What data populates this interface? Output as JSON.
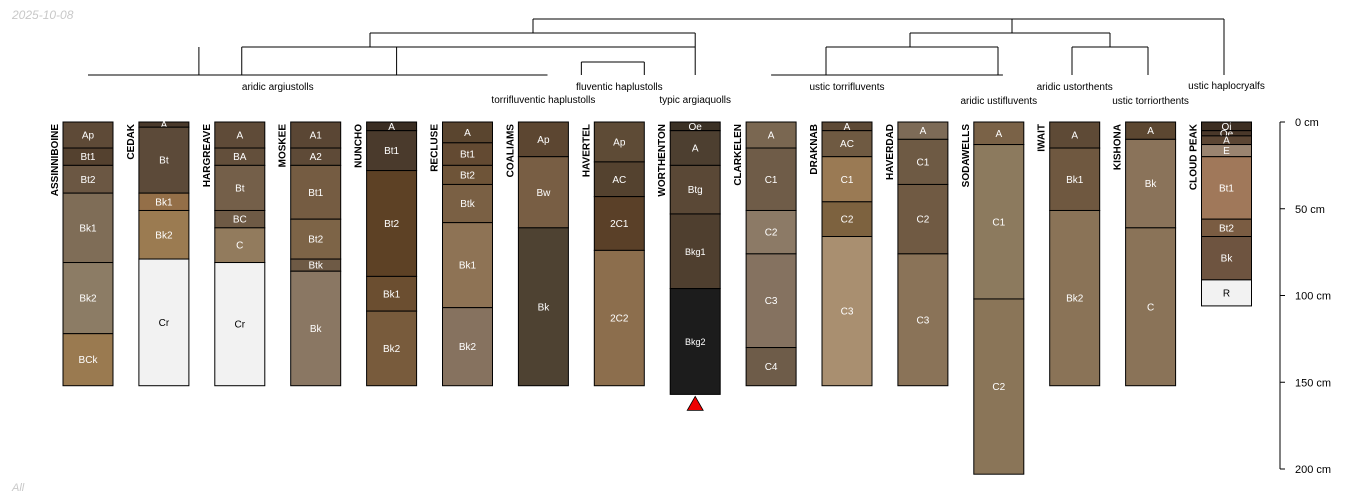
{
  "stamp": {
    "date": "2025-10-08",
    "group": "All"
  },
  "colors": {
    "stroke": "#000000",
    "missing_marker": "#ee0000"
  },
  "chart_data": {
    "type": "soil-profile-sketch",
    "depth_unit": "cm",
    "depth_range": [
      0,
      200
    ],
    "depth_ticks": [
      0,
      50,
      100,
      150,
      200
    ],
    "depth_tick_labels": [
      "0 cm",
      "50 cm",
      "100 cm",
      "150 cm",
      "200 cm"
    ],
    "profiles": [
      {
        "id": "ASSINNIBOINE",
        "horizons": [
          {
            "name": "Ap",
            "top": 0,
            "bottom": 15,
            "color": "#5e4a37"
          },
          {
            "name": "Bt1",
            "top": 15,
            "bottom": 25,
            "color": "#54412f"
          },
          {
            "name": "Bt2",
            "top": 25,
            "bottom": 41,
            "color": "#6b5743"
          },
          {
            "name": "Bk1",
            "top": 41,
            "bottom": 81,
            "color": "#7f6d57"
          },
          {
            "name": "Bk2",
            "top": 81,
            "bottom": 122,
            "color": "#8c7c65"
          },
          {
            "name": "BCk",
            "top": 122,
            "bottom": 152,
            "color": "#9a7a50"
          }
        ]
      },
      {
        "id": "CEDAK",
        "horizons": [
          {
            "name": "A",
            "top": 0,
            "bottom": 3,
            "color": "#4a3a2c"
          },
          {
            "name": "Bt",
            "top": 3,
            "bottom": 41,
            "color": "#5c4a39"
          },
          {
            "name": "Bk1",
            "top": 41,
            "bottom": 51,
            "color": "#946f48"
          },
          {
            "name": "Bk2",
            "top": 51,
            "bottom": 79,
            "color": "#9b7b51"
          },
          {
            "name": "Cr",
            "top": 79,
            "bottom": 152,
            "color": "#f2f2f2"
          }
        ]
      },
      {
        "id": "HARGREAVE",
        "horizons": [
          {
            "name": "A",
            "top": 0,
            "bottom": 15,
            "color": "#5f4b38"
          },
          {
            "name": "BA",
            "top": 15,
            "bottom": 25,
            "color": "#634f3b"
          },
          {
            "name": "Bt",
            "top": 25,
            "bottom": 51,
            "color": "#745f49"
          },
          {
            "name": "BC",
            "top": 51,
            "bottom": 61,
            "color": "#6e5a45"
          },
          {
            "name": "C",
            "top": 61,
            "bottom": 81,
            "color": "#927b5d"
          },
          {
            "name": "Cr",
            "top": 81,
            "bottom": 152,
            "color": "#f2f2f2"
          }
        ]
      },
      {
        "id": "MOSKEE",
        "horizons": [
          {
            "name": "A1",
            "top": 0,
            "bottom": 15,
            "color": "#5a4634"
          },
          {
            "name": "A2",
            "top": 15,
            "bottom": 25,
            "color": "#5e4a37"
          },
          {
            "name": "Bt1",
            "top": 25,
            "bottom": 56,
            "color": "#755c42"
          },
          {
            "name": "Bt2",
            "top": 56,
            "bottom": 79,
            "color": "#7d6447"
          },
          {
            "name": "Btk",
            "top": 79,
            "bottom": 86,
            "color": "#6e5a45"
          },
          {
            "name": "Bk",
            "top": 86,
            "bottom": 152,
            "color": "#8a7763"
          }
        ]
      },
      {
        "id": "NUNCHO",
        "horizons": [
          {
            "name": "A",
            "top": 0,
            "bottom": 5,
            "color": "#3a2d22"
          },
          {
            "name": "Bt1",
            "top": 5,
            "bottom": 28,
            "color": "#4a3a2c"
          },
          {
            "name": "Bt2",
            "top": 28,
            "bottom": 89,
            "color": "#5d4125"
          },
          {
            "name": "Bk1",
            "top": 89,
            "bottom": 109,
            "color": "#6b4e30"
          },
          {
            "name": "Bk2",
            "top": 109,
            "bottom": 152,
            "color": "#785b3c"
          }
        ]
      },
      {
        "id": "RECLUSE",
        "horizons": [
          {
            "name": "A",
            "top": 0,
            "bottom": 12,
            "color": "#5a452f"
          },
          {
            "name": "Bt1",
            "top": 12,
            "bottom": 25,
            "color": "#634a32"
          },
          {
            "name": "Bt2",
            "top": 25,
            "bottom": 36,
            "color": "#6e5438"
          },
          {
            "name": "Btk",
            "top": 36,
            "bottom": 58,
            "color": "#7a6044"
          },
          {
            "name": "Bk1",
            "top": 58,
            "bottom": 107,
            "color": "#8e7355"
          },
          {
            "name": "Bk2",
            "top": 107,
            "bottom": 152,
            "color": "#86725f"
          }
        ]
      },
      {
        "id": "COALIAMS",
        "horizons": [
          {
            "name": "Ap",
            "top": 0,
            "bottom": 20,
            "color": "#5c4631"
          },
          {
            "name": "Bw",
            "top": 20,
            "bottom": 61,
            "color": "#785e44"
          },
          {
            "name": "Bk",
            "top": 61,
            "bottom": 152,
            "color": "#4e4232"
          }
        ]
      },
      {
        "id": "HAVERTEL",
        "horizons": [
          {
            "name": "Ap",
            "top": 0,
            "bottom": 23,
            "color": "#5e4b36"
          },
          {
            "name": "AC",
            "top": 23,
            "bottom": 43,
            "color": "#54422f"
          },
          {
            "name": "2C1",
            "top": 43,
            "bottom": 74,
            "color": "#5a4028"
          },
          {
            "name": "2C2",
            "top": 74,
            "bottom": 152,
            "color": "#8c6e4d"
          }
        ]
      },
      {
        "id": "WORTHENTON",
        "missing_bottom": true,
        "horizons": [
          {
            "name": "Oe",
            "top": 0,
            "bottom": 5,
            "color": "#3b3125"
          },
          {
            "name": "A",
            "top": 5,
            "bottom": 25,
            "color": "#4d3f30"
          },
          {
            "name": "Btg",
            "top": 25,
            "bottom": 53,
            "color": "#5a4836"
          },
          {
            "name": "Bkg1",
            "top": 53,
            "bottom": 96,
            "color": "#4f3f2f"
          },
          {
            "name": "Bkg2",
            "top": 96,
            "bottom": 157,
            "color": "#1c1c1c"
          }
        ]
      },
      {
        "id": "CLARKELEN",
        "horizons": [
          {
            "name": "A",
            "top": 0,
            "bottom": 15,
            "color": "#7a6751"
          },
          {
            "name": "C1",
            "top": 15,
            "bottom": 51,
            "color": "#6f5c48"
          },
          {
            "name": "C2",
            "top": 51,
            "bottom": 76,
            "color": "#8c7a66"
          },
          {
            "name": "C3",
            "top": 76,
            "bottom": 130,
            "color": "#857260"
          },
          {
            "name": "C4",
            "top": 130,
            "bottom": 152,
            "color": "#6e5c49"
          }
        ]
      },
      {
        "id": "DRAKNAB",
        "horizons": [
          {
            "name": "A",
            "top": 0,
            "bottom": 5,
            "color": "#5e4a36"
          },
          {
            "name": "AC",
            "top": 5,
            "bottom": 20,
            "color": "#6f5a42"
          },
          {
            "name": "C1",
            "top": 20,
            "bottom": 46,
            "color": "#9a7a54"
          },
          {
            "name": "C2",
            "top": 46,
            "bottom": 66,
            "color": "#7d623f"
          },
          {
            "name": "C3",
            "top": 66,
            "bottom": 152,
            "color": "#a98f70"
          }
        ]
      },
      {
        "id": "HAVERDAD",
        "horizons": [
          {
            "name": "A",
            "top": 0,
            "bottom": 10,
            "color": "#7d6b57"
          },
          {
            "name": "C1",
            "top": 10,
            "bottom": 36,
            "color": "#6e5a44"
          },
          {
            "name": "C2",
            "top": 36,
            "bottom": 76,
            "color": "#705a43"
          },
          {
            "name": "C3",
            "top": 76,
            "bottom": 152,
            "color": "#8a7358"
          }
        ]
      },
      {
        "id": "SODAWELLS",
        "horizons": [
          {
            "name": "A",
            "top": 0,
            "bottom": 13,
            "color": "#7a6247"
          },
          {
            "name": "C1",
            "top": 13,
            "bottom": 102,
            "color": "#8c7a5e"
          },
          {
            "name": "C2",
            "top": 102,
            "bottom": 203,
            "color": "#8a7558"
          }
        ]
      },
      {
        "id": "IWAIT",
        "horizons": [
          {
            "name": "A",
            "top": 0,
            "bottom": 15,
            "color": "#5e4a36"
          },
          {
            "name": "Bk1",
            "top": 15,
            "bottom": 51,
            "color": "#6f5840"
          },
          {
            "name": "Bk2",
            "top": 51,
            "bottom": 152,
            "color": "#8a7357"
          }
        ]
      },
      {
        "id": "KISHONA",
        "horizons": [
          {
            "name": "A",
            "top": 0,
            "bottom": 10,
            "color": "#5c4731"
          },
          {
            "name": "Bk",
            "top": 10,
            "bottom": 61,
            "color": "#8a735a"
          },
          {
            "name": "C",
            "top": 61,
            "bottom": 152,
            "color": "#8a7358"
          }
        ]
      },
      {
        "id": "CLOUD PEAK",
        "horizons": [
          {
            "name": "Oi",
            "top": 0,
            "bottom": 5,
            "color": "#3d2e22"
          },
          {
            "name": "Oe",
            "top": 5,
            "bottom": 8,
            "color": "#4a382a"
          },
          {
            "name": "A",
            "top": 8,
            "bottom": 13,
            "color": "#5c4634"
          },
          {
            "name": "E",
            "top": 13,
            "bottom": 20,
            "color": "#9a8470"
          },
          {
            "name": "Bt1",
            "top": 20,
            "bottom": 56,
            "color": "#a0785a"
          },
          {
            "name": "Bt2",
            "top": 56,
            "bottom": 66,
            "color": "#7a5c42"
          },
          {
            "name": "Bk",
            "top": 66,
            "bottom": 91,
            "color": "#6e5440"
          },
          {
            "name": "R",
            "top": 91,
            "bottom": 106,
            "color": "#f2f2f2"
          }
        ]
      }
    ],
    "groups": [
      {
        "label": "aridic argiustolls",
        "first": 0,
        "last": 5
      },
      {
        "label": "torrifluventic haplustolls",
        "first": 6,
        "last": 6
      },
      {
        "label": "fluventic haplustolls",
        "first": 7,
        "last": 7
      },
      {
        "label": "typic argiaquolls",
        "first": 8,
        "last": 8
      },
      {
        "label": "ustic torrifluvents",
        "first": 9,
        "last": 11
      },
      {
        "label": "aridic ustifluvents",
        "first": 12,
        "last": 12
      },
      {
        "label": "aridic ustorthents",
        "first": 13,
        "last": 13
      },
      {
        "label": "ustic torriorthents",
        "first": 14,
        "last": 14
      },
      {
        "label": "ustic haplocryalfs",
        "first": 15,
        "last": 15
      }
    ]
  }
}
